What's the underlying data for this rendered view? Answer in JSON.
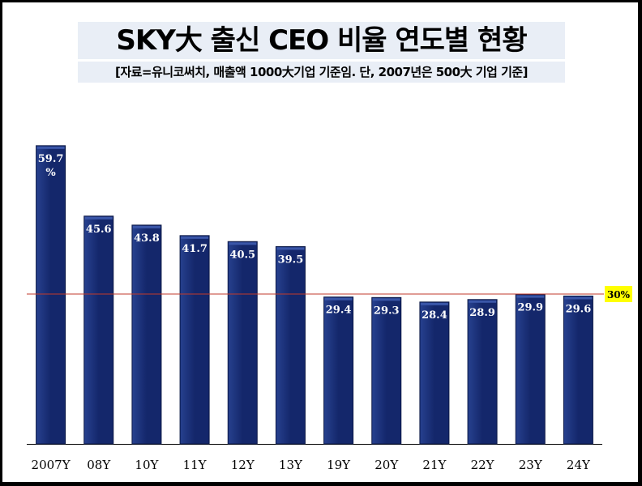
{
  "header": {
    "title": "SKY大 출신 CEO 비율 연도별 현황",
    "subtitle": "[자료=유니코써치, 매출액 1000大기업  기준임. 단, 2007년은 500大 기업 기준]"
  },
  "colors": {
    "bar": "#14276b",
    "bar_highlight": "#27418f",
    "reference_line": "#c0392b",
    "reference_label_bg": "#ffff00",
    "label_text": "#ffffff"
  },
  "chart_data": {
    "type": "bar",
    "title": "SKY大 출신 CEO 비율 연도별 현황",
    "subtitle": "[자료=유니코써치, 매출액 1000大기업  기준임. 단, 2007년은 500大 기업 기준]",
    "categories": [
      "2007Y",
      "08Y",
      "10Y",
      "11Y",
      "12Y",
      "13Y",
      "19Y",
      "20Y",
      "21Y",
      "22Y",
      "23Y",
      "24Y"
    ],
    "values": [
      59.7,
      45.6,
      43.8,
      41.7,
      40.5,
      39.5,
      29.4,
      29.3,
      28.4,
      28.9,
      29.9,
      29.6
    ],
    "data_labels": [
      "59.7 %",
      "45.6",
      "43.8",
      "41.7",
      "40.5",
      "39.5",
      "29.4",
      "29.3",
      "28.4",
      "28.9",
      "29.9",
      "29.6"
    ],
    "unit": "%",
    "ylim": [
      0,
      65
    ],
    "reference_line": {
      "value": 30,
      "label": "30%"
    },
    "xlabel": "",
    "ylabel": "",
    "grid": false,
    "legend": "none"
  }
}
